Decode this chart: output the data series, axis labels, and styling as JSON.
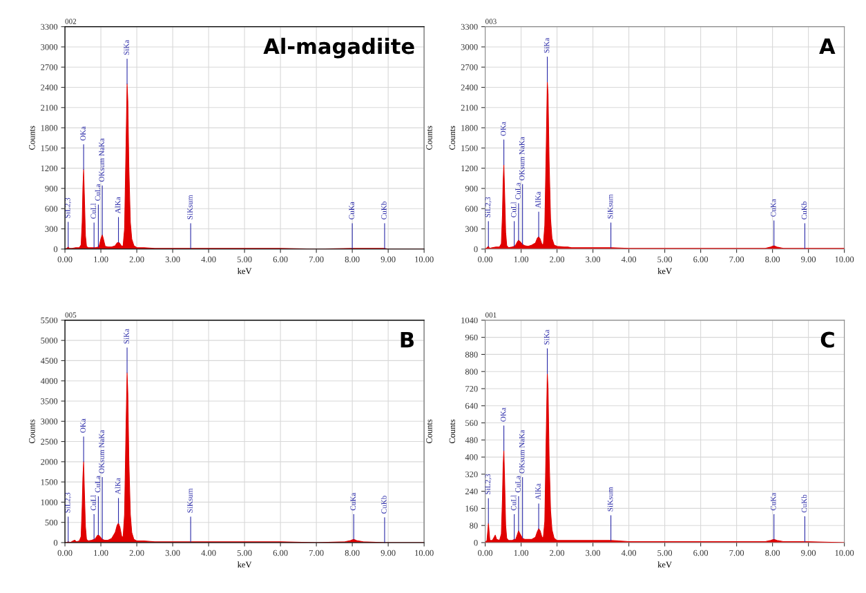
{
  "chart_data": [
    {
      "type": "area",
      "title": "Al-magadiite",
      "subtitle": "002",
      "xlabel": "keV",
      "ylabel": "Counts",
      "y2label": "Counts",
      "grid": true,
      "xlim": [
        0,
        10
      ],
      "xticks": [
        {
          "value": 0,
          "label": "0.00"
        },
        {
          "value": 1,
          "label": "1.00"
        },
        {
          "value": 2,
          "label": "2.00"
        },
        {
          "value": 3,
          "label": "3.00"
        },
        {
          "value": 4,
          "label": "4.00"
        },
        {
          "value": 5,
          "label": "5.00"
        },
        {
          "value": 6,
          "label": "6.00"
        },
        {
          "value": 7,
          "label": "7.00"
        },
        {
          "value": 8,
          "label": "8.00"
        },
        {
          "value": 9,
          "label": "9.00"
        },
        {
          "value": 10,
          "label": "10.00"
        }
      ],
      "ylim": [
        0,
        3300
      ],
      "yticks": [
        0,
        300,
        600,
        900,
        1200,
        1500,
        1800,
        2100,
        2400,
        2700,
        3000,
        3300
      ],
      "series": [
        {
          "color": "#e00000",
          "x": [
            0,
            0.05,
            0.09,
            0.12,
            0.2,
            0.3,
            0.4,
            0.45,
            0.48,
            0.5,
            0.52,
            0.54,
            0.57,
            0.6,
            0.65,
            0.75,
            0.81,
            0.85,
            0.93,
            0.95,
            1.0,
            1.04,
            1.07,
            1.12,
            1.2,
            1.3,
            1.4,
            1.45,
            1.49,
            1.53,
            1.58,
            1.62,
            1.66,
            1.7,
            1.73,
            1.75,
            1.78,
            1.82,
            1.86,
            1.92,
            2.0,
            2.2,
            2.5,
            3.0,
            3.5,
            4.0,
            5.0,
            6.0,
            7.0,
            8.0,
            8.9,
            9.0,
            10.0
          ],
          "values": [
            0,
            10,
            30,
            10,
            10,
            20,
            20,
            60,
            400,
            900,
            1180,
            800,
            200,
            40,
            20,
            20,
            20,
            20,
            30,
            40,
            150,
            210,
            150,
            40,
            30,
            30,
            50,
            90,
            100,
            80,
            40,
            50,
            300,
            1500,
            2450,
            2200,
            1200,
            400,
            150,
            50,
            20,
            20,
            10,
            10,
            10,
            10,
            10,
            10,
            0,
            10,
            10,
            0,
            0
          ]
        }
      ],
      "annotations": [
        {
          "text": "SiL2,3",
          "x": 0.09,
          "y": 30
        },
        {
          "text": "OKa",
          "x": 0.52,
          "y": 1180
        },
        {
          "text": "CuLl",
          "x": 0.81,
          "y": 20
        },
        {
          "text": "CuLa",
          "x": 0.93,
          "y": 30
        },
        {
          "text": "OKsum NaKa",
          "x": 1.04,
          "y": 210
        },
        {
          "text": "AlKa",
          "x": 1.49,
          "y": 100
        },
        {
          "text": "SiKa",
          "x": 1.73,
          "y": 2450
        },
        {
          "text": "SiKsum",
          "x": 3.5,
          "y": 10
        },
        {
          "text": "CuKa",
          "x": 8.0,
          "y": 10
        },
        {
          "text": "CuKb",
          "x": 8.9,
          "y": 10
        }
      ]
    },
    {
      "type": "area",
      "title": "A",
      "subtitle": "003",
      "xlabel": "keV",
      "ylabel": "Counts",
      "grid": true,
      "xlim": [
        0,
        10
      ],
      "xticks": [
        {
          "value": 0,
          "label": "0.00"
        },
        {
          "value": 1,
          "label": "1.00"
        },
        {
          "value": 2,
          "label": "2.00"
        },
        {
          "value": 3,
          "label": "3.00"
        },
        {
          "value": 4,
          "label": "4.00"
        },
        {
          "value": 5,
          "label": "5.00"
        },
        {
          "value": 6,
          "label": "6.00"
        },
        {
          "value": 7,
          "label": "7.00"
        },
        {
          "value": 8,
          "label": "8.00"
        },
        {
          "value": 9,
          "label": "9.00"
        },
        {
          "value": 10,
          "label": "10.00"
        }
      ],
      "ylim": [
        0,
        3300
      ],
      "yticks": [
        0,
        300,
        600,
        900,
        1200,
        1500,
        1800,
        2100,
        2400,
        2700,
        3000,
        3300
      ],
      "series": [
        {
          "color": "#e00000",
          "x": [
            0,
            0.05,
            0.09,
            0.12,
            0.2,
            0.3,
            0.4,
            0.45,
            0.48,
            0.5,
            0.52,
            0.54,
            0.57,
            0.6,
            0.65,
            0.75,
            0.81,
            0.85,
            0.9,
            0.93,
            0.97,
            1.04,
            1.1,
            1.2,
            1.3,
            1.4,
            1.45,
            1.49,
            1.53,
            1.58,
            1.62,
            1.66,
            1.7,
            1.73,
            1.75,
            1.78,
            1.82,
            1.86,
            1.92,
            2.0,
            2.2,
            2.3,
            2.4,
            2.6,
            3.0,
            3.5,
            4.0,
            5.0,
            6.0,
            7.0,
            7.8,
            7.95,
            8.04,
            8.12,
            8.3,
            8.9,
            10.0
          ],
          "values": [
            0,
            20,
            40,
            10,
            20,
            30,
            30,
            80,
            500,
            1000,
            1250,
            850,
            250,
            50,
            20,
            30,
            40,
            60,
            110,
            130,
            110,
            70,
            50,
            40,
            60,
            90,
            160,
            180,
            150,
            70,
            70,
            350,
            1500,
            2480,
            2300,
            1300,
            450,
            160,
            60,
            40,
            30,
            30,
            20,
            20,
            20,
            20,
            10,
            10,
            10,
            10,
            10,
            30,
            50,
            30,
            10,
            10,
            10
          ]
        }
      ],
      "annotations": [
        {
          "text": "SiL2,3",
          "x": 0.09,
          "y": 40
        },
        {
          "text": "OKa",
          "x": 0.52,
          "y": 1250
        },
        {
          "text": "CuLl",
          "x": 0.81,
          "y": 40
        },
        {
          "text": "CuLa",
          "x": 0.93,
          "y": 130
        },
        {
          "text": "OKsum NaKa",
          "x": 1.04,
          "y": 70
        },
        {
          "text": "AlKa",
          "x": 1.49,
          "y": 180
        },
        {
          "text": "SiKa",
          "x": 1.73,
          "y": 2480
        },
        {
          "text": "SiKsum",
          "x": 3.5,
          "y": 20
        },
        {
          "text": "CuKa",
          "x": 8.04,
          "y": 50
        },
        {
          "text": "CuKb",
          "x": 8.9,
          "y": 10
        }
      ]
    },
    {
      "type": "area",
      "title": "B",
      "subtitle": "005",
      "xlabel": "keV",
      "ylabel": "Counts",
      "y2label": "Counts",
      "grid": true,
      "xlim": [
        0,
        10
      ],
      "xticks": [
        {
          "value": 0,
          "label": "0.00"
        },
        {
          "value": 1,
          "label": "1.00"
        },
        {
          "value": 2,
          "label": "2.00"
        },
        {
          "value": 3,
          "label": "3.00"
        },
        {
          "value": 4,
          "label": "4.00"
        },
        {
          "value": 5,
          "label": "5.00"
        },
        {
          "value": 6,
          "label": "6.00"
        },
        {
          "value": 7,
          "label": "7.00"
        },
        {
          "value": 8,
          "label": "8.00"
        },
        {
          "value": 9,
          "label": "9.00"
        },
        {
          "value": 10,
          "label": "10.00"
        }
      ],
      "ylim": [
        0,
        5500
      ],
      "yticks": [
        0,
        500,
        1000,
        1500,
        2000,
        2500,
        3000,
        3500,
        4000,
        4500,
        5000,
        5500
      ],
      "series": [
        {
          "color": "#e00000",
          "x": [
            0,
            0.05,
            0.09,
            0.15,
            0.22,
            0.27,
            0.32,
            0.4,
            0.45,
            0.48,
            0.5,
            0.52,
            0.54,
            0.57,
            0.6,
            0.65,
            0.75,
            0.81,
            0.85,
            0.9,
            0.93,
            0.97,
            1.04,
            1.1,
            1.2,
            1.3,
            1.4,
            1.45,
            1.49,
            1.53,
            1.58,
            1.62,
            1.66,
            1.7,
            1.73,
            1.75,
            1.78,
            1.82,
            1.86,
            1.92,
            2.0,
            2.2,
            2.5,
            3.0,
            3.5,
            4.0,
            5.0,
            6.0,
            7.0,
            7.8,
            7.95,
            8.04,
            8.12,
            8.3,
            8.9,
            10.0
          ],
          "values": [
            0,
            0,
            20,
            0,
            40,
            60,
            20,
            40,
            150,
            900,
            1600,
            2000,
            1300,
            400,
            80,
            40,
            60,
            80,
            100,
            170,
            190,
            150,
            80,
            60,
            60,
            100,
            250,
            420,
            480,
            380,
            150,
            140,
            700,
            2800,
            4200,
            3700,
            2000,
            700,
            250,
            80,
            40,
            40,
            20,
            20,
            20,
            20,
            20,
            20,
            0,
            20,
            50,
            80,
            50,
            20,
            0,
            0
          ]
        }
      ],
      "annotations": [
        {
          "text": "SiL2,3",
          "x": 0.09,
          "y": 20
        },
        {
          "text": "OKa",
          "x": 0.52,
          "y": 2000
        },
        {
          "text": "CuLl",
          "x": 0.81,
          "y": 80
        },
        {
          "text": "CuLa",
          "x": 0.93,
          "y": 190
        },
        {
          "text": "OKsum NaKa",
          "x": 1.04,
          "y": 80
        },
        {
          "text": "AlKa",
          "x": 1.49,
          "y": 480
        },
        {
          "text": "SiKa",
          "x": 1.73,
          "y": 4200
        },
        {
          "text": "SiKsum",
          "x": 3.5,
          "y": 20
        },
        {
          "text": "CuKa",
          "x": 8.04,
          "y": 80
        },
        {
          "text": "CuKb",
          "x": 8.9,
          "y": 0
        }
      ]
    },
    {
      "type": "area",
      "title": "C",
      "subtitle": "001",
      "xlabel": "keV",
      "ylabel": "Counts",
      "grid": true,
      "xlim": [
        0,
        10
      ],
      "xticks": [
        {
          "value": 0,
          "label": "0.00"
        },
        {
          "value": 1,
          "label": "1.00"
        },
        {
          "value": 2,
          "label": "2.00"
        },
        {
          "value": 3,
          "label": "3.00"
        },
        {
          "value": 4,
          "label": "4.00"
        },
        {
          "value": 5,
          "label": "5.00"
        },
        {
          "value": 6,
          "label": "6.00"
        },
        {
          "value": 7,
          "label": "7.00"
        },
        {
          "value": 8,
          "label": "8.00"
        },
        {
          "value": 9,
          "label": "9.00"
        },
        {
          "value": 10,
          "label": "10.00"
        }
      ],
      "ylim": [
        0,
        1040
      ],
      "yticks": [
        0,
        80,
        160,
        240,
        320,
        400,
        480,
        560,
        640,
        720,
        800,
        880,
        960,
        1040
      ],
      "series": [
        {
          "color": "#e00000",
          "x": [
            0,
            0.05,
            0.09,
            0.13,
            0.2,
            0.25,
            0.28,
            0.32,
            0.4,
            0.45,
            0.48,
            0.5,
            0.52,
            0.54,
            0.57,
            0.6,
            0.65,
            0.75,
            0.81,
            0.85,
            0.9,
            0.93,
            0.97,
            1.04,
            1.1,
            1.2,
            1.3,
            1.4,
            1.45,
            1.49,
            1.53,
            1.58,
            1.62,
            1.66,
            1.7,
            1.73,
            1.75,
            1.78,
            1.82,
            1.86,
            1.92,
            2.0,
            2.2,
            2.5,
            3.0,
            3.5,
            4.0,
            5.0,
            6.0,
            7.0,
            7.8,
            7.95,
            8.04,
            8.12,
            8.3,
            8.9,
            10.0
          ],
          "values": [
            0,
            10,
            90,
            10,
            10,
            25,
            35,
            15,
            10,
            40,
            200,
            360,
            430,
            300,
            80,
            20,
            10,
            10,
            15,
            15,
            40,
            55,
            40,
            20,
            15,
            15,
            15,
            25,
            50,
            65,
            55,
            25,
            25,
            100,
            500,
            790,
            720,
            400,
            150,
            60,
            20,
            10,
            10,
            10,
            10,
            10,
            5,
            5,
            5,
            5,
            5,
            10,
            15,
            10,
            5,
            5,
            0
          ]
        }
      ],
      "annotations": [
        {
          "text": "SiL2,3",
          "x": 0.09,
          "y": 90
        },
        {
          "text": "OKa",
          "x": 0.52,
          "y": 430
        },
        {
          "text": "CuLl",
          "x": 0.81,
          "y": 15
        },
        {
          "text": "CuLa",
          "x": 0.93,
          "y": 55
        },
        {
          "text": "OKsum NaKa",
          "x": 1.04,
          "y": 20
        },
        {
          "text": "AlKa",
          "x": 1.49,
          "y": 65
        },
        {
          "text": "SiKa",
          "x": 1.73,
          "y": 790
        },
        {
          "text": "SiKsum",
          "x": 3.5,
          "y": 10
        },
        {
          "text": "CuKa",
          "x": 8.04,
          "y": 15
        },
        {
          "text": "CuKb",
          "x": 8.9,
          "y": 5
        }
      ]
    }
  ]
}
